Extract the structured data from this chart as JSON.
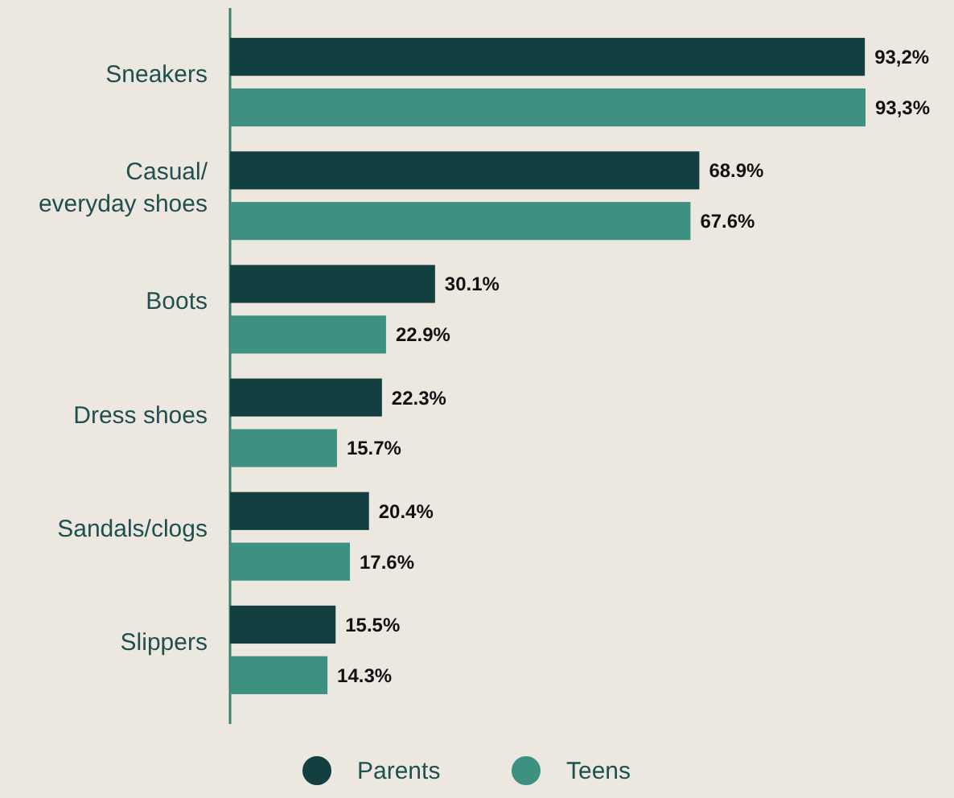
{
  "chart_data": {
    "type": "bar",
    "orientation": "horizontal",
    "categories": [
      "Sneakers",
      "Casual/ everyday shoes",
      "Boots",
      "Dress shoes",
      "Sandals/clogs",
      "Slippers"
    ],
    "series": [
      {
        "name": "Parents",
        "color": "#143f40",
        "values": [
          93.2,
          68.9,
          30.1,
          22.3,
          20.4,
          15.5
        ],
        "value_labels": [
          "93,2%",
          "68.9%",
          "30.1%",
          "22.3%",
          "20.4%",
          "15.5%"
        ]
      },
      {
        "name": "Teens",
        "color": "#3e9080",
        "values": [
          93.3,
          67.6,
          22.9,
          15.7,
          17.6,
          14.3
        ],
        "value_labels": [
          "93,3%",
          "67.6%",
          "22.9%",
          "15.7%",
          "17.6%",
          "14.3%"
        ]
      }
    ],
    "legend": "bottom"
  }
}
